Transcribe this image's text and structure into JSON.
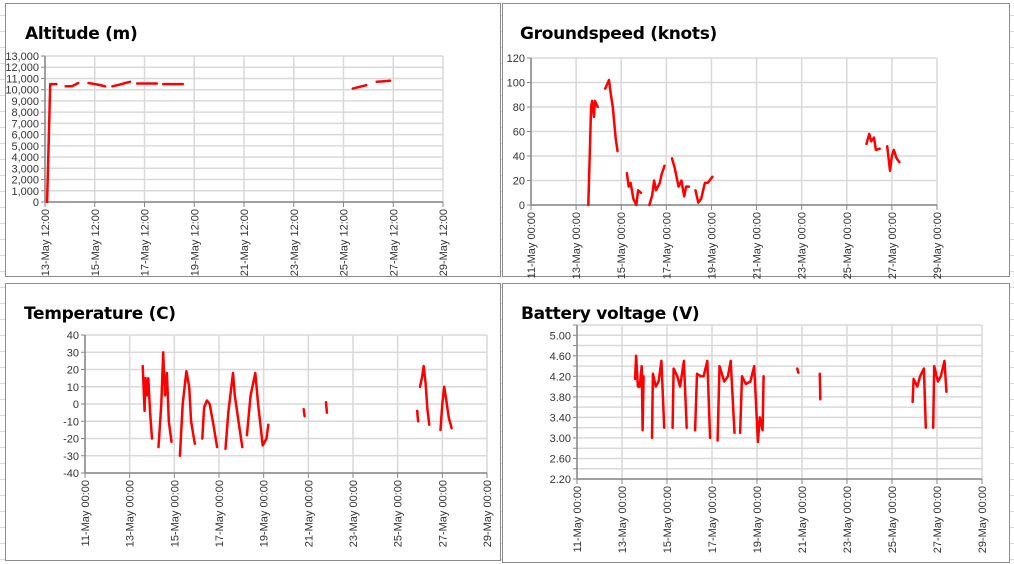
{
  "colors": {
    "series": "#ff0000",
    "grid": "#d9d9d9",
    "axis": "#868686"
  },
  "chart_data": [
    {
      "id": "altitude",
      "type": "line",
      "title": "Altitude (m)",
      "grid": true,
      "xlim": [
        "13-May 12:00",
        "29-May 12:00"
      ],
      "xticks": [
        "13-May 12:00",
        "15-May 12:00",
        "17-May 12:00",
        "19-May 12:00",
        "21-May 12:00",
        "23-May 12:00",
        "25-May 12:00",
        "27-May 12:00",
        "29-May 12:00"
      ],
      "ylim": [
        0,
        13000
      ],
      "ygrid_step": 1000,
      "yticks": [
        0,
        1000,
        2000,
        3000,
        4000,
        5000,
        6000,
        7000,
        8000,
        9000,
        10000,
        11000,
        12000,
        13000
      ],
      "ytick_labels": [
        "0",
        "1,000",
        "2,000",
        "3,000",
        "4,000",
        "5,000",
        "6,000",
        "7,000",
        "8,000",
        "9,000",
        "10,000",
        "11,000",
        "12,000",
        "13,000"
      ],
      "segments": [
        [
          [
            "13-May 14:00",
            0
          ],
          [
            "13-May 17:00",
            10500
          ],
          [
            "13-May 23:00",
            10500
          ]
        ],
        [
          [
            "14-May 08:00",
            10300
          ],
          [
            "14-May 14:00",
            10300
          ],
          [
            "14-May 20:00",
            10600
          ]
        ],
        [
          [
            "15-May 06:00",
            10600
          ],
          [
            "15-May 15:00",
            10450
          ],
          [
            "15-May 22:00",
            10300
          ]
        ],
        [
          [
            "16-May 05:00",
            10300
          ],
          [
            "16-May 14:00",
            10500
          ],
          [
            "16-May 22:00",
            10700
          ]
        ],
        [
          [
            "17-May 05:00",
            10550
          ],
          [
            "18-May 00:00",
            10550
          ]
        ],
        [
          [
            "18-May 06:00",
            10500
          ],
          [
            "19-May 01:00",
            10500
          ]
        ],
        [
          [
            "25-May 21:00",
            10100
          ],
          [
            "26-May 10:00",
            10400
          ]
        ],
        [
          [
            "26-May 20:00",
            10700
          ],
          [
            "27-May 09:00",
            10800
          ]
        ]
      ]
    },
    {
      "id": "groundspeed",
      "type": "line",
      "title": "Groundspeed (knots)",
      "grid": true,
      "xlim": [
        "11-May 00:00",
        "29-May 00:00"
      ],
      "xticks": [
        "11-May 00:00",
        "13-May 00:00",
        "15-May 00:00",
        "17-May 00:00",
        "19-May 00:00",
        "21-May 00:00",
        "23-May 00:00",
        "25-May 00:00",
        "27-May 00:00",
        "29-May 00:00"
      ],
      "ylim": [
        0,
        120
      ],
      "ygrid_step": 20,
      "yticks": [
        0,
        20,
        40,
        60,
        80,
        100,
        120
      ],
      "ytick_labels": [
        "0",
        "20",
        "40",
        "60",
        "80",
        "100",
        "120"
      ],
      "segments": [
        [
          [
            "13-May 13:00",
            0
          ],
          [
            "13-May 16:00",
            80
          ],
          [
            "13-May 17:00",
            85
          ],
          [
            "13-May 19:00",
            72
          ],
          [
            "13-May 20:00",
            85
          ],
          [
            "13-May 23:00",
            80
          ]
        ],
        [
          [
            "14-May 07:00",
            95
          ],
          [
            "14-May 11:00",
            102
          ],
          [
            "14-May 13:00",
            90
          ],
          [
            "14-May 15:00",
            80
          ],
          [
            "14-May 18:00",
            55
          ],
          [
            "14-May 20:00",
            44
          ]
        ],
        [
          [
            "15-May 06:00",
            26
          ],
          [
            "15-May 08:00",
            15
          ],
          [
            "15-May 10:00",
            18
          ],
          [
            "15-May 13:00",
            5
          ],
          [
            "15-May 16:00",
            0
          ],
          [
            "15-May 18:00",
            12
          ],
          [
            "15-May 21:00",
            10
          ]
        ],
        [
          [
            "16-May 06:00",
            0
          ],
          [
            "16-May 09:00",
            8
          ],
          [
            "16-May 11:00",
            20
          ],
          [
            "16-May 13:00",
            12
          ],
          [
            "16-May 17:00",
            18
          ],
          [
            "16-May 19:00",
            25
          ],
          [
            "16-May 22:00",
            32
          ]
        ],
        [
          [
            "17-May 06:00",
            38
          ],
          [
            "17-May 09:00",
            30
          ],
          [
            "17-May 13:00",
            15
          ],
          [
            "17-May 16:00",
            20
          ],
          [
            "17-May 19:00",
            7
          ],
          [
            "17-May 21:00",
            15
          ],
          [
            "18-May 00:00",
            15
          ]
        ],
        [
          [
            "18-May 07:00",
            12
          ],
          [
            "18-May 10:00",
            2
          ],
          [
            "18-May 13:00",
            5
          ],
          [
            "18-May 17:00",
            18
          ],
          [
            "18-May 20:00",
            18
          ],
          [
            "19-May 01:00",
            23
          ]
        ],
        [
          [
            "25-May 21:00",
            50
          ],
          [
            "26-May 00:00",
            58
          ],
          [
            "26-May 02:00",
            52
          ],
          [
            "26-May 05:00",
            55
          ],
          [
            "26-May 07:00",
            45
          ],
          [
            "26-May 11:00",
            46
          ]
        ],
        [
          [
            "26-May 19:00",
            48
          ],
          [
            "26-May 22:00",
            28
          ],
          [
            "27-May 00:00",
            40
          ],
          [
            "27-May 02:00",
            45
          ],
          [
            "27-May 05:00",
            38
          ],
          [
            "27-May 08:00",
            35
          ]
        ]
      ]
    },
    {
      "id": "temperature",
      "type": "line",
      "title": "Temperature (C)",
      "grid": true,
      "xlim": [
        "11-May 00:00",
        "29-May 00:00"
      ],
      "xticks": [
        "11-May 00:00",
        "13-May 00:00",
        "15-May 00:00",
        "17-May 00:00",
        "19-May 00:00",
        "21-May 00:00",
        "23-May 00:00",
        "25-May 00:00",
        "27-May 00:00",
        "29-May 00:00"
      ],
      "ylim": [
        -40,
        40
      ],
      "ygrid_step": 10,
      "yticks": [
        -40,
        -30,
        -20,
        -10,
        0,
        10,
        20,
        30,
        40
      ],
      "ytick_labels": [
        "-40",
        "-30",
        "-20",
        "-10",
        "0",
        "10",
        "20",
        "30",
        "40"
      ],
      "segments": [
        [
          [
            "13-May 14:00",
            22
          ],
          [
            "13-May 16:00",
            -4
          ],
          [
            "13-May 17:00",
            15
          ],
          [
            "13-May 19:00",
            5
          ],
          [
            "13-May 20:00",
            15
          ],
          [
            "13-May 22:00",
            -5
          ],
          [
            "14-May 00:00",
            -20
          ]
        ],
        [
          [
            "14-May 07:00",
            -25
          ],
          [
            "14-May 10:00",
            0
          ],
          [
            "14-May 12:00",
            30
          ],
          [
            "14-May 14:00",
            5
          ],
          [
            "14-May 16:00",
            18
          ],
          [
            "14-May 18:00",
            -10
          ],
          [
            "14-May 21:00",
            -22
          ]
        ],
        [
          [
            "15-May 06:00",
            -30
          ],
          [
            "15-May 09:00",
            0
          ],
          [
            "15-May 13:00",
            19
          ],
          [
            "15-May 16:00",
            10
          ],
          [
            "15-May 18:00",
            -10
          ],
          [
            "15-May 22:00",
            -23
          ]
        ],
        [
          [
            "16-May 06:00",
            -20
          ],
          [
            "16-May 08:00",
            -2
          ],
          [
            "16-May 11:00",
            2
          ],
          [
            "16-May 14:00",
            0
          ],
          [
            "16-May 18:00",
            -12
          ],
          [
            "16-May 22:00",
            -25
          ]
        ],
        [
          [
            "17-May 07:00",
            -26
          ],
          [
            "17-May 10:00",
            -5
          ],
          [
            "17-May 15:00",
            18
          ],
          [
            "17-May 17:00",
            5
          ],
          [
            "17-May 21:00",
            -10
          ],
          [
            "18-May 01:00",
            -25
          ]
        ],
        [
          [
            "18-May 06:00",
            -18
          ],
          [
            "18-May 10:00",
            5
          ],
          [
            "18-May 15:00",
            18
          ],
          [
            "18-May 18:00",
            0
          ],
          [
            "18-May 23:00",
            -24
          ],
          [
            "19-May 03:00",
            -20
          ],
          [
            "19-May 05:00",
            -12
          ]
        ],
        [
          [
            "20-May 19:00",
            -3
          ],
          [
            "20-May 20:00",
            -7
          ]
        ],
        [
          [
            "21-May 19:00",
            1
          ],
          [
            "21-May 20:00",
            -5
          ]
        ],
        [
          [
            "25-May 21:00",
            -4
          ],
          [
            "25-May 22:00",
            -10
          ]
        ],
        [
          [
            "26-May 00:00",
            10
          ],
          [
            "26-May 02:00",
            15
          ],
          [
            "26-May 04:00",
            22
          ],
          [
            "26-May 06:00",
            12
          ],
          [
            "26-May 08:00",
            -3
          ],
          [
            "26-May 10:00",
            -12
          ]
        ],
        [
          [
            "26-May 22:00",
            -15
          ],
          [
            "27-May 00:00",
            0
          ],
          [
            "27-May 02:00",
            10
          ],
          [
            "27-May 04:00",
            3
          ],
          [
            "27-May 07:00",
            -8
          ],
          [
            "27-May 10:00",
            -14
          ]
        ]
      ]
    },
    {
      "id": "battery",
      "type": "line",
      "title": "Battery voltage (V)",
      "grid": true,
      "xlim": [
        "11-May 00:00",
        "29-May 00:00"
      ],
      "xticks": [
        "11-May 00:00",
        "13-May 00:00",
        "15-May 00:00",
        "17-May 00:00",
        "19-May 00:00",
        "21-May 00:00",
        "23-May 00:00",
        "25-May 00:00",
        "27-May 00:00",
        "29-May 00:00"
      ],
      "ylim": [
        2.2,
        5.2
      ],
      "ygrid_step": 0.2,
      "yticks": [
        2.2,
        2.6,
        3.0,
        3.4,
        3.8,
        4.2,
        4.6,
        5.0
      ],
      "ytick_labels": [
        "2.20",
        "2.60",
        "3.00",
        "3.40",
        "3.80",
        "4.20",
        "4.60",
        "5.00"
      ],
      "segments": [
        [
          [
            "13-May 14:00",
            4.15
          ],
          [
            "13-May 15:00",
            4.6
          ],
          [
            "13-May 17:00",
            4.0
          ],
          [
            "13-May 19:00",
            4.0
          ],
          [
            "13-May 21:00",
            4.4
          ],
          [
            "13-May 22:00",
            3.15
          ],
          [
            "13-May 23:00",
            4.2
          ]
        ],
        [
          [
            "14-May 08:00",
            3.0
          ],
          [
            "14-May 09:00",
            4.25
          ],
          [
            "14-May 12:00",
            4.0
          ],
          [
            "14-May 15:00",
            4.1
          ],
          [
            "14-May 18:00",
            4.5
          ],
          [
            "14-May 21:00",
            3.2
          ]
        ],
        [
          [
            "15-May 06:00",
            3.2
          ],
          [
            "15-May 07:00",
            4.35
          ],
          [
            "15-May 11:00",
            4.2
          ],
          [
            "15-May 14:00",
            4.0
          ],
          [
            "15-May 18:00",
            4.5
          ],
          [
            "15-May 21:00",
            3.2
          ]
        ],
        [
          [
            "16-May 06:00",
            3.15
          ],
          [
            "16-May 08:00",
            4.25
          ],
          [
            "16-May 12:00",
            4.2
          ],
          [
            "16-May 15:00",
            4.2
          ],
          [
            "16-May 19:00",
            4.5
          ],
          [
            "16-May 22:00",
            3.0
          ]
        ],
        [
          [
            "17-May 06:00",
            2.95
          ],
          [
            "17-May 08:00",
            4.4
          ],
          [
            "17-May 13:00",
            4.1
          ],
          [
            "17-May 17:00",
            4.2
          ],
          [
            "17-May 20:00",
            4.5
          ],
          [
            "18-May 00:00",
            3.1
          ]
        ],
        [
          [
            "18-May 06:00",
            3.1
          ],
          [
            "18-May 08:00",
            4.2
          ],
          [
            "18-May 12:00",
            4.05
          ],
          [
            "18-May 17:00",
            4.1
          ],
          [
            "18-May 21:00",
            4.4
          ],
          [
            "19-May 01:00",
            2.92
          ],
          [
            "19-May 03:00",
            3.4
          ],
          [
            "19-May 06:00",
            3.15
          ],
          [
            "19-May 07:00",
            4.2
          ]
        ],
        [
          [
            "20-May 19:00",
            4.35
          ],
          [
            "20-May 20:00",
            4.27
          ]
        ],
        [
          [
            "21-May 19:00",
            4.25
          ],
          [
            "21-May 19:30",
            3.75
          ]
        ],
        [
          [
            "25-May 22:00",
            3.7
          ],
          [
            "25-May 23:00",
            4.15
          ],
          [
            "26-May 03:00",
            4.0
          ],
          [
            "26-May 06:00",
            4.2
          ],
          [
            "26-May 10:00",
            4.35
          ],
          [
            "26-May 12:00",
            3.2
          ]
        ],
        [
          [
            "26-May 20:00",
            3.2
          ],
          [
            "26-May 21:00",
            4.4
          ],
          [
            "27-May 01:00",
            4.1
          ],
          [
            "27-May 04:00",
            4.2
          ],
          [
            "27-May 08:00",
            4.5
          ],
          [
            "27-May 10:00",
            3.9
          ]
        ]
      ]
    }
  ]
}
